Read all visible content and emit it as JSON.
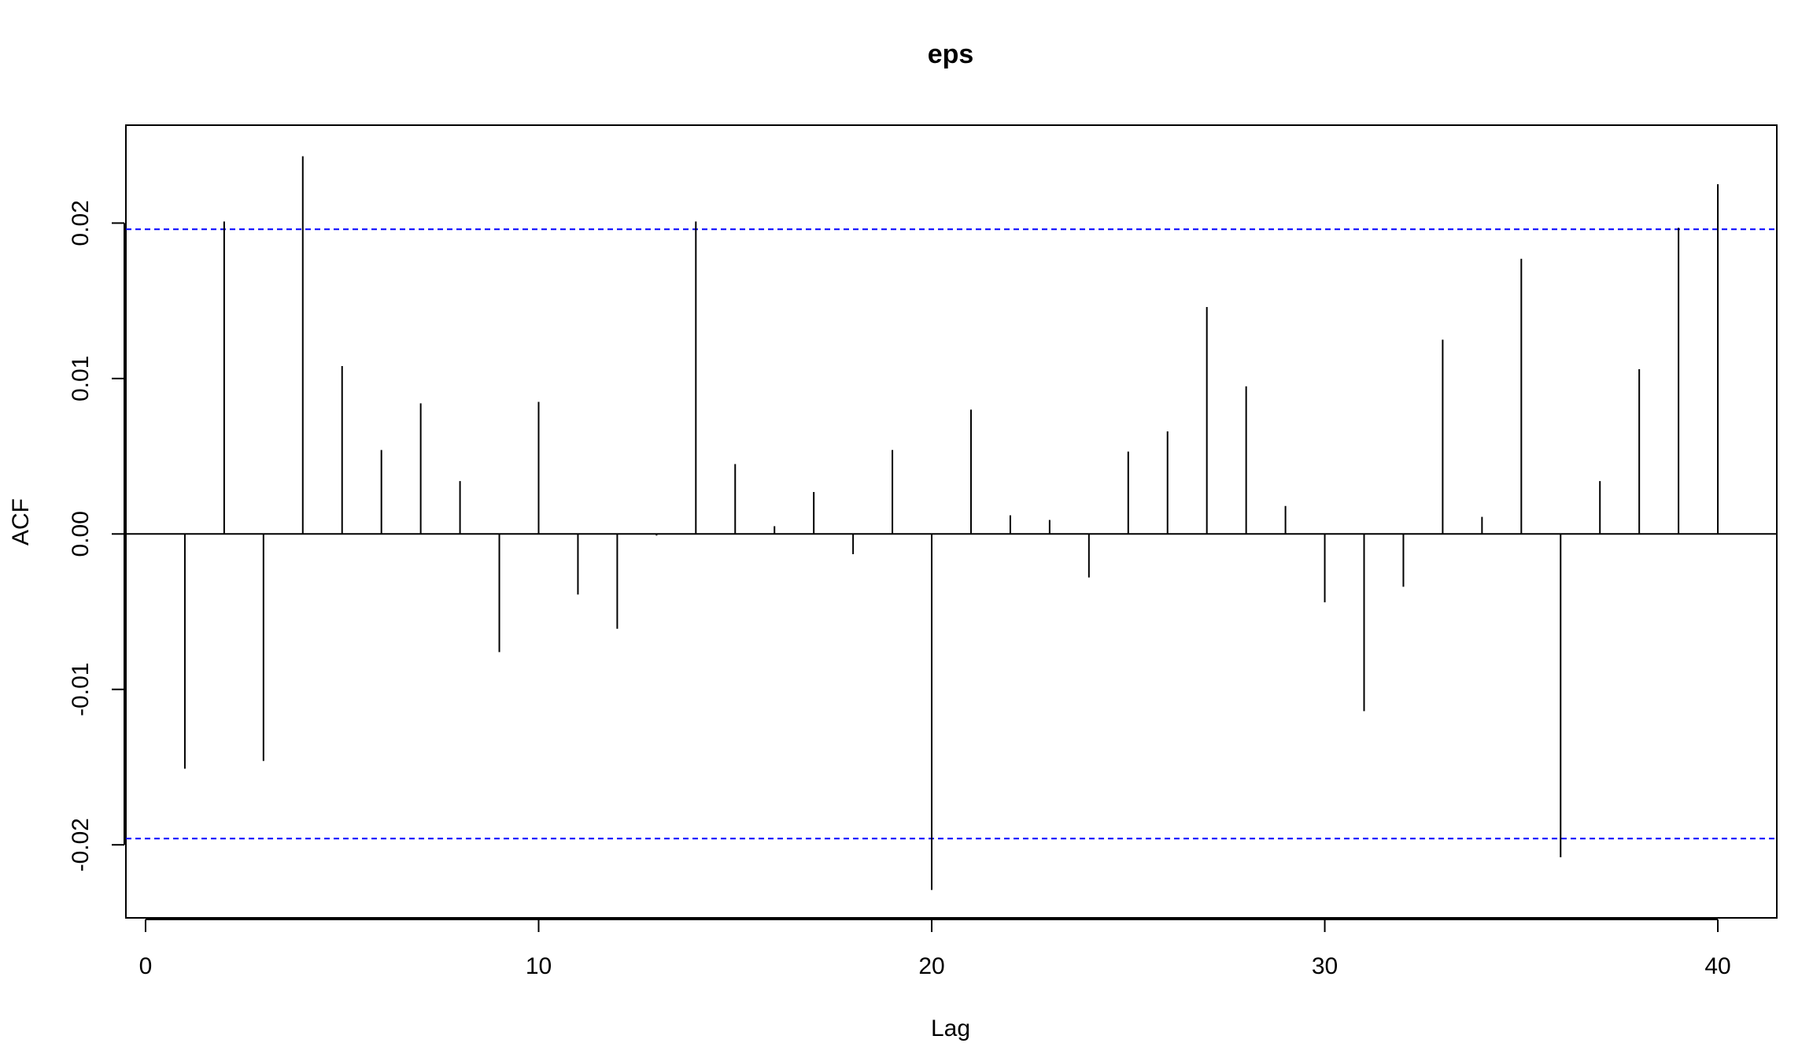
{
  "chart_data": {
    "type": "bar",
    "title": "eps",
    "xlabel": "Lag",
    "ylabel": "ACF",
    "xlim": [
      -0.5,
      41.5
    ],
    "ylim": [
      -0.0247,
      0.0263
    ],
    "x_ticks": [
      0,
      10,
      20,
      30,
      40
    ],
    "x_tick_labels": [
      "0",
      "10",
      "20",
      "30",
      "40"
    ],
    "y_ticks": [
      -0.02,
      -0.01,
      0.0,
      0.01,
      0.02
    ],
    "y_tick_labels": [
      "-0.02",
      "-0.01",
      "0.00",
      "0.01",
      "0.02"
    ],
    "series": [
      {
        "lags": [
          1,
          2,
          3,
          4,
          5,
          6,
          7,
          8,
          9,
          10,
          11,
          12,
          13,
          14,
          15,
          16,
          17,
          18,
          19,
          20,
          21,
          22,
          23,
          24,
          25,
          26,
          27,
          28,
          29,
          30,
          31,
          32,
          33,
          34,
          35,
          36,
          37,
          38,
          39,
          40
        ],
        "values": [
          -0.0151,
          0.0201,
          -0.0146,
          0.0243,
          0.0108,
          0.0054,
          0.0084,
          0.0034,
          -0.0076,
          0.0085,
          -0.0039,
          -0.0061,
          -0.0001,
          0.0201,
          0.0045,
          0.0005,
          0.0027,
          -0.0013,
          0.0054,
          -0.0229,
          0.008,
          0.0012,
          0.0009,
          -0.0028,
          0.0053,
          0.0066,
          0.0146,
          0.0095,
          0.0018,
          -0.0044,
          -0.0114,
          -0.0034,
          0.0125,
          0.0011,
          0.0177,
          -0.0208,
          0.0034,
          0.0106,
          0.0197,
          0.0225
        ]
      }
    ],
    "confidence_bounds": [
      0.0196,
      -0.0196
    ],
    "zero_line": 0,
    "grid": false,
    "colors": {
      "bars": "#000000",
      "confidence": "#0000ff",
      "frame": "#000000"
    }
  }
}
